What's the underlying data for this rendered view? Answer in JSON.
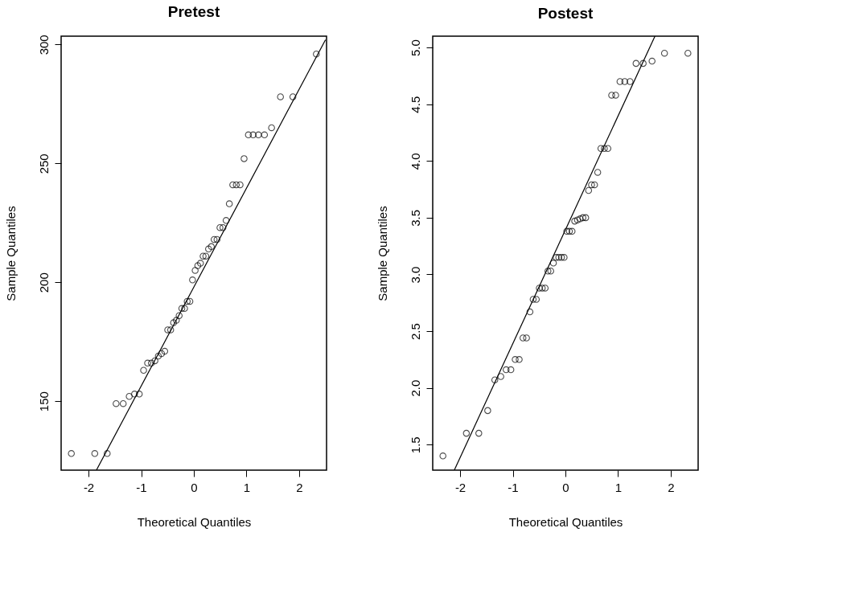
{
  "chart_data": [
    {
      "type": "scatter",
      "title": "Pretest",
      "xlabel": "Theoretical Quantiles",
      "ylabel": "Sample Quantiles",
      "marker": "circle",
      "grid": false,
      "xlim": [
        -2.52,
        2.52
      ],
      "xticks": [
        -2,
        -1,
        0,
        1,
        2
      ],
      "ylim": [
        121,
        303.5
      ],
      "yticks": [
        150,
        200,
        250,
        300
      ],
      "series": [
        {
          "type": "scatter",
          "color": "#000000",
          "x": [
            -2.326,
            -1.881,
            -1.645,
            -1.476,
            -1.341,
            -1.227,
            -1.126,
            -1.036,
            -0.954,
            -0.878,
            -0.806,
            -0.739,
            -0.674,
            -0.613,
            -0.553,
            -0.496,
            -0.44,
            -0.385,
            -0.332,
            -0.279,
            -0.228,
            -0.176,
            -0.126,
            -0.075,
            -0.025,
            0.025,
            0.075,
            0.126,
            0.176,
            0.228,
            0.279,
            0.332,
            0.385,
            0.44,
            0.496,
            0.553,
            0.613,
            0.674,
            0.739,
            0.806,
            0.878,
            0.954,
            1.036,
            1.126,
            1.227,
            1.341,
            1.476,
            1.645,
            1.881,
            2.326
          ],
          "values": [
            128,
            128,
            128,
            149,
            149,
            152,
            153,
            153,
            163,
            166,
            166,
            167,
            169,
            170,
            171,
            180,
            180,
            183,
            184,
            186,
            189,
            189,
            192,
            192,
            201,
            205,
            207,
            208,
            211,
            211,
            214,
            215,
            218,
            218,
            223,
            223,
            226,
            233,
            241,
            241,
            241,
            252,
            262,
            262,
            262,
            262,
            265,
            278,
            278,
            296
          ]
        },
        {
          "type": "line",
          "color": "#000000",
          "marker": "none",
          "line_style": "solid",
          "x": [
            -1.85,
            2.5
          ],
          "values": [
            121,
            302
          ]
        }
      ]
    },
    {
      "type": "scatter",
      "title": "Postest",
      "xlabel": "Theoretical Quantiles",
      "ylabel": "Sample Quantiles",
      "marker": "circle",
      "grid": false,
      "xlim": [
        -2.52,
        2.52
      ],
      "xticks": [
        -2,
        -1,
        0,
        1,
        2
      ],
      "ylim": [
        1.275,
        5.1
      ],
      "yticks": [
        1.5,
        {
          "value": 2,
          "label": "2.0"
        },
        2.5,
        {
          "value": 3,
          "label": "3.0"
        },
        3.5,
        {
          "value": 4,
          "label": "4.0"
        },
        4.5,
        {
          "value": 5,
          "label": "5.0"
        }
      ],
      "series": [
        {
          "type": "scatter",
          "color": "#000000",
          "x": [
            -2.326,
            -1.881,
            -1.645,
            -1.476,
            -1.341,
            -1.227,
            -1.126,
            -1.036,
            -0.954,
            -0.878,
            -0.806,
            -0.739,
            -0.674,
            -0.613,
            -0.553,
            -0.496,
            -0.44,
            -0.385,
            -0.332,
            -0.279,
            -0.228,
            -0.176,
            -0.126,
            -0.075,
            -0.025,
            0.025,
            0.075,
            0.126,
            0.176,
            0.228,
            0.279,
            0.332,
            0.385,
            0.44,
            0.496,
            0.553,
            0.613,
            0.674,
            0.739,
            0.806,
            0.878,
            0.954,
            1.036,
            1.126,
            1.227,
            1.341,
            1.476,
            1.645,
            1.881,
            2.326
          ],
          "values": [
            1.4,
            1.6,
            1.6,
            1.8,
            2.07,
            2.1,
            2.16,
            2.16,
            2.25,
            2.25,
            2.44,
            2.44,
            2.67,
            2.78,
            2.78,
            2.88,
            2.88,
            2.88,
            3.03,
            3.03,
            3.1,
            3.15,
            3.15,
            3.15,
            3.15,
            3.38,
            3.38,
            3.38,
            3.47,
            3.48,
            3.49,
            3.5,
            3.5,
            3.74,
            3.79,
            3.79,
            3.9,
            4.11,
            4.11,
            4.11,
            4.58,
            4.58,
            4.7,
            4.7,
            4.7,
            4.86,
            4.86,
            4.88,
            4.95,
            4.95
          ]
        },
        {
          "type": "line",
          "color": "#000000",
          "marker": "none",
          "line_style": "solid",
          "x": [
            -2.11,
            1.7
          ],
          "values": [
            1.275,
            5.1
          ]
        }
      ]
    }
  ]
}
